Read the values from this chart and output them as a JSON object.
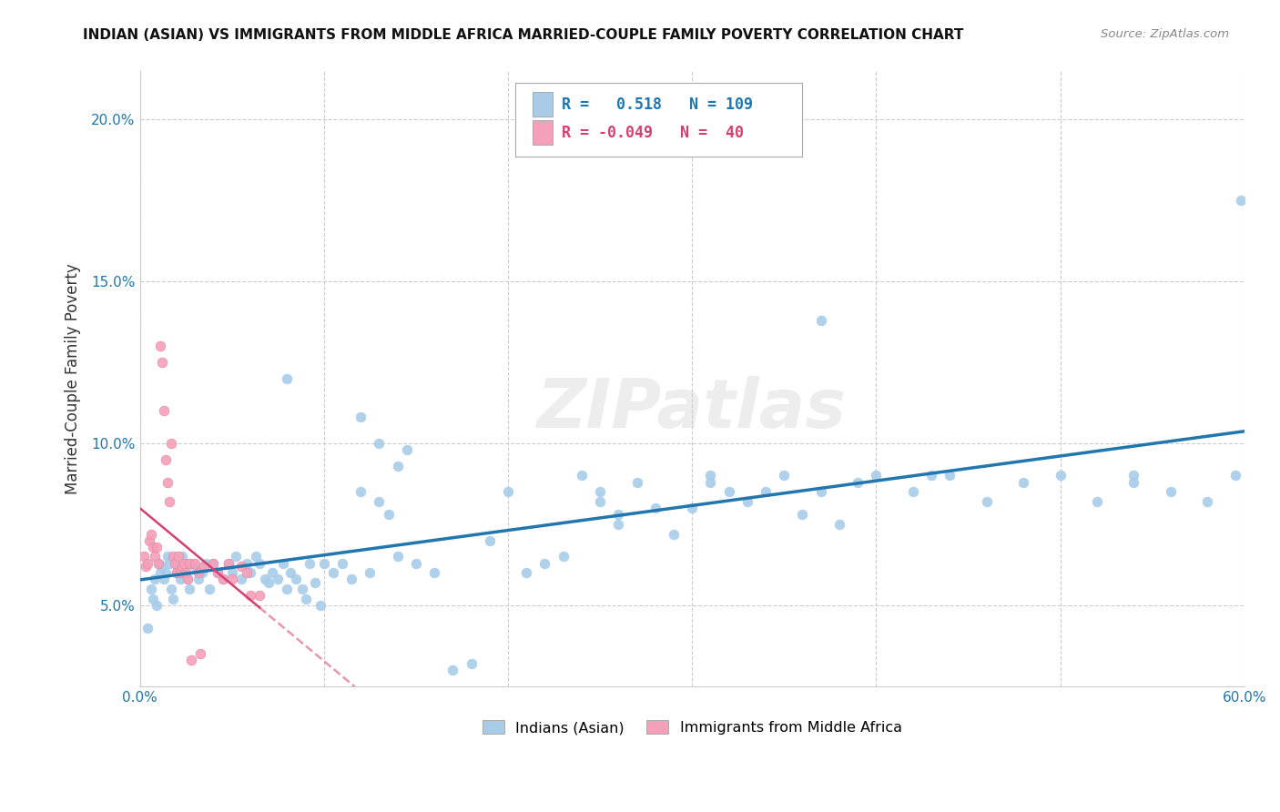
{
  "title": "INDIAN (ASIAN) VS IMMIGRANTS FROM MIDDLE AFRICA MARRIED-COUPLE FAMILY POVERTY CORRELATION CHART",
  "source": "Source: ZipAtlas.com",
  "ylabel": "Married-Couple Family Poverty",
  "xlim": [
    0.0,
    0.6
  ],
  "ylim": [
    0.025,
    0.215
  ],
  "xticks": [
    0.0,
    0.1,
    0.2,
    0.3,
    0.4,
    0.5,
    0.6
  ],
  "xticklabels": [
    "0.0%",
    "",
    "",
    "",
    "",
    "",
    "60.0%"
  ],
  "yticks": [
    0.05,
    0.1,
    0.15,
    0.2
  ],
  "yticklabels": [
    "5.0%",
    "10.0%",
    "15.0%",
    "20.0%"
  ],
  "blue_R": 0.518,
  "blue_N": 109,
  "pink_R": -0.049,
  "pink_N": 40,
  "blue_color": "#a8cce8",
  "pink_color": "#f4a0b8",
  "blue_line_color": "#2176ae",
  "pink_line_color": "#d44070",
  "tick_color": "#2176ae",
  "watermark": "ZIPatlas",
  "legend_label_blue": "Indians (Asian)",
  "legend_label_pink": "Immigrants from Middle Africa",
  "blue_scatter_x": [
    0.004,
    0.006,
    0.007,
    0.008,
    0.009,
    0.01,
    0.011,
    0.012,
    0.013,
    0.014,
    0.015,
    0.016,
    0.017,
    0.018,
    0.019,
    0.02,
    0.021,
    0.022,
    0.023,
    0.024,
    0.025,
    0.026,
    0.027,
    0.028,
    0.03,
    0.032,
    0.034,
    0.036,
    0.038,
    0.04,
    0.042,
    0.045,
    0.048,
    0.05,
    0.052,
    0.055,
    0.058,
    0.06,
    0.063,
    0.065,
    0.068,
    0.07,
    0.072,
    0.075,
    0.078,
    0.08,
    0.082,
    0.085,
    0.088,
    0.09,
    0.092,
    0.095,
    0.098,
    0.1,
    0.105,
    0.11,
    0.115,
    0.12,
    0.125,
    0.13,
    0.135,
    0.14,
    0.145,
    0.15,
    0.16,
    0.17,
    0.18,
    0.19,
    0.2,
    0.21,
    0.22,
    0.23,
    0.24,
    0.25,
    0.26,
    0.27,
    0.28,
    0.29,
    0.3,
    0.31,
    0.32,
    0.33,
    0.34,
    0.35,
    0.36,
    0.37,
    0.38,
    0.39,
    0.4,
    0.42,
    0.44,
    0.46,
    0.48,
    0.5,
    0.52,
    0.54,
    0.56,
    0.58,
    0.595,
    0.598,
    0.12,
    0.13,
    0.14,
    0.25,
    0.26,
    0.31,
    0.43,
    0.37,
    0.54,
    0.08
  ],
  "blue_scatter_y": [
    0.043,
    0.055,
    0.052,
    0.058,
    0.05,
    0.063,
    0.06,
    0.062,
    0.058,
    0.06,
    0.065,
    0.063,
    0.055,
    0.052,
    0.063,
    0.06,
    0.062,
    0.058,
    0.065,
    0.06,
    0.063,
    0.058,
    0.055,
    0.063,
    0.062,
    0.058,
    0.06,
    0.063,
    0.055,
    0.063,
    0.06,
    0.058,
    0.063,
    0.06,
    0.065,
    0.058,
    0.063,
    0.06,
    0.065,
    0.063,
    0.058,
    0.057,
    0.06,
    0.058,
    0.063,
    0.055,
    0.06,
    0.058,
    0.055,
    0.052,
    0.063,
    0.057,
    0.05,
    0.063,
    0.06,
    0.063,
    0.058,
    0.085,
    0.06,
    0.082,
    0.078,
    0.065,
    0.098,
    0.063,
    0.06,
    0.03,
    0.032,
    0.07,
    0.085,
    0.06,
    0.063,
    0.065,
    0.09,
    0.085,
    0.075,
    0.088,
    0.08,
    0.072,
    0.08,
    0.09,
    0.085,
    0.082,
    0.085,
    0.09,
    0.078,
    0.085,
    0.075,
    0.088,
    0.09,
    0.085,
    0.09,
    0.082,
    0.088,
    0.09,
    0.082,
    0.09,
    0.085,
    0.082,
    0.09,
    0.175,
    0.108,
    0.1,
    0.093,
    0.082,
    0.078,
    0.088,
    0.09,
    0.138,
    0.088,
    0.12
  ],
  "pink_scatter_x": [
    0.002,
    0.003,
    0.004,
    0.005,
    0.006,
    0.007,
    0.008,
    0.009,
    0.01,
    0.011,
    0.012,
    0.013,
    0.014,
    0.015,
    0.016,
    0.017,
    0.018,
    0.019,
    0.02,
    0.021,
    0.022,
    0.023,
    0.024,
    0.025,
    0.026,
    0.027,
    0.028,
    0.03,
    0.032,
    0.033,
    0.035,
    0.04,
    0.042,
    0.045,
    0.048,
    0.05,
    0.055,
    0.058,
    0.06,
    0.065
  ],
  "pink_scatter_y": [
    0.065,
    0.062,
    0.063,
    0.07,
    0.072,
    0.068,
    0.065,
    0.068,
    0.063,
    0.13,
    0.125,
    0.11,
    0.095,
    0.088,
    0.082,
    0.1,
    0.065,
    0.063,
    0.06,
    0.065,
    0.06,
    0.062,
    0.063,
    0.06,
    0.058,
    0.063,
    0.033,
    0.063,
    0.06,
    0.035,
    0.062,
    0.063,
    0.06,
    0.058,
    0.063,
    0.058,
    0.062,
    0.06,
    0.053,
    0.053
  ]
}
